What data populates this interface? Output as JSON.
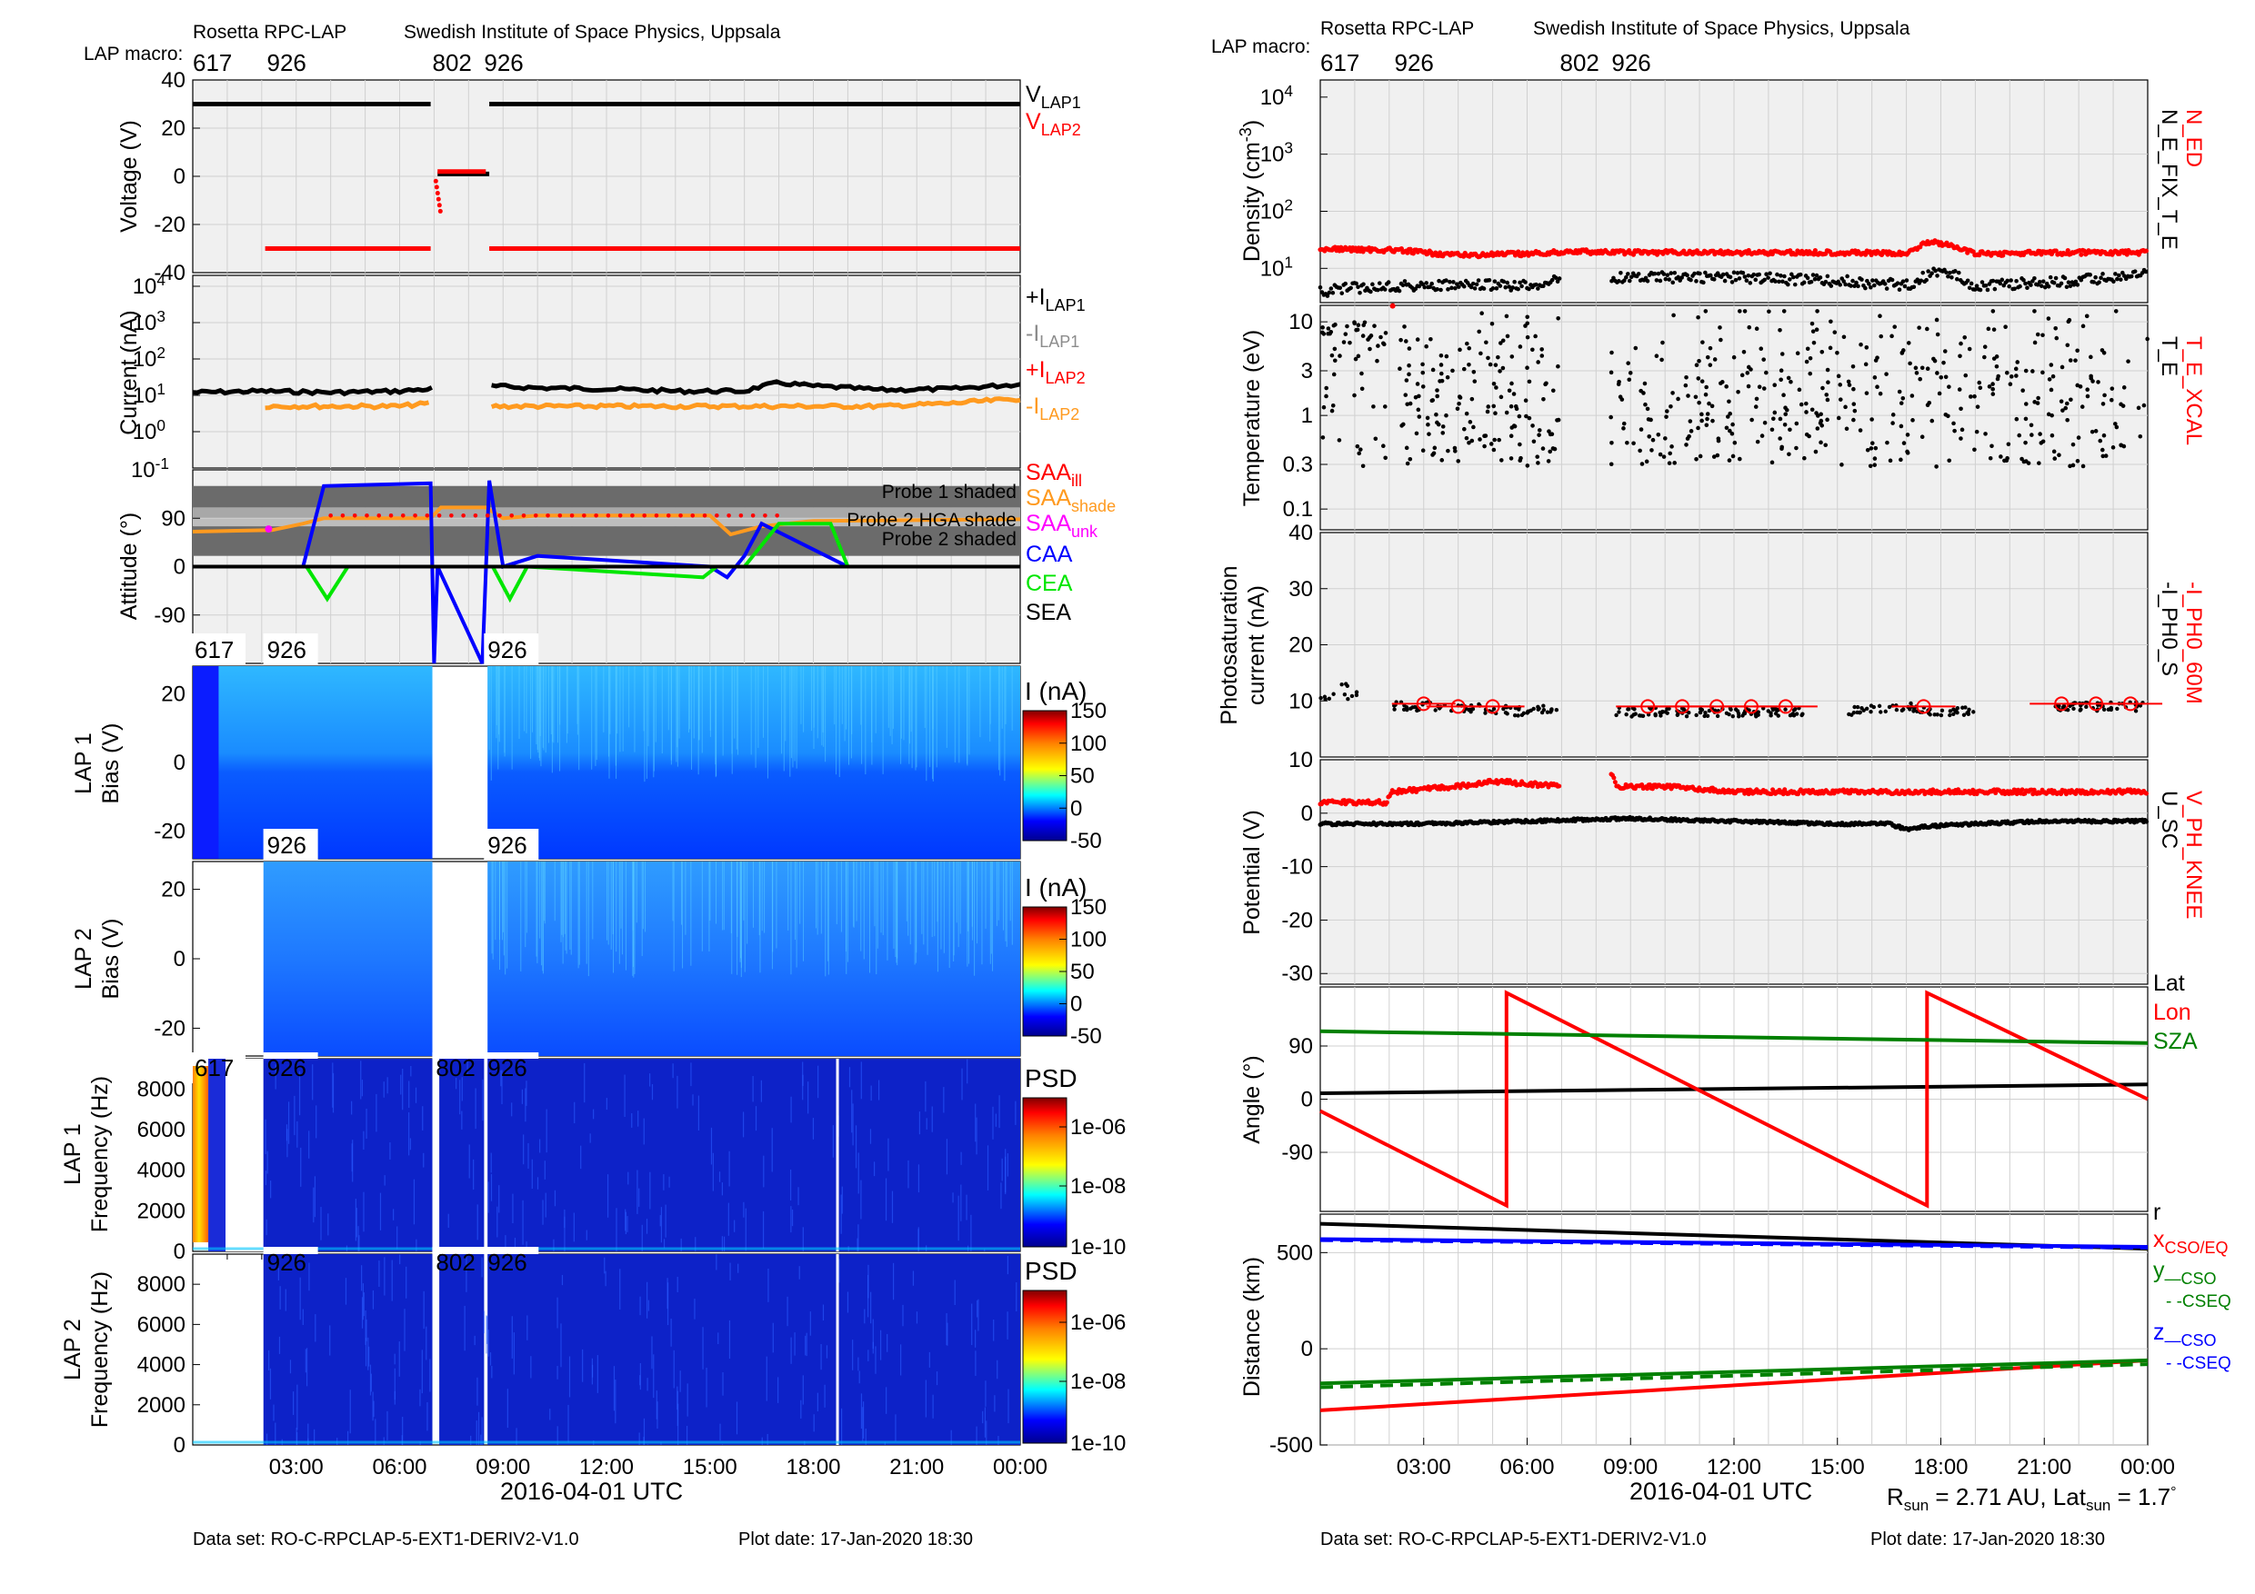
{
  "header": {
    "instrument": "Rosetta RPC-LAP",
    "institute": "Swedish Institute of Space Physics, Uppsala",
    "macro_label": "LAP macro:",
    "macros": [
      "617",
      "926",
      "802",
      "926"
    ]
  },
  "footer": {
    "dataset": "Data set: RO-C-RPCLAP-5-EXT1-DERIV2-V1.0",
    "plot_date": "Plot date: 17-Jan-2020 18:30",
    "sun_info": "R_sun = 2.71 AU, Lat_sun = 1.7°"
  },
  "xaxis": {
    "title": "2016-04-01 UTC",
    "ticks": [
      "03:00",
      "06:00",
      "09:00",
      "12:00",
      "15:00",
      "18:00",
      "21:00",
      "00:00"
    ],
    "range_hours": [
      0,
      24
    ]
  },
  "colors": {
    "black": "#000000",
    "red": "#ff0000",
    "orange": "#ff9a1f",
    "gray": "#8c8c8c",
    "magenta": "#ff00ff",
    "blue": "#0000ff",
    "green": "#00e600",
    "darkgreen": "#008000",
    "panel_bg": "#f0f0f0",
    "grid": "#d0d0d0"
  },
  "chart_data": [
    {
      "id": "voltage",
      "type": "scatter",
      "ylabel": "Voltage (V)",
      "yticks": [
        40,
        20,
        0,
        -20,
        -40
      ],
      "ylim": [
        -40,
        40
      ],
      "legend": [
        {
          "name": "V_LAP1",
          "color": "#000000"
        },
        {
          "name": "V_LAP2",
          "color": "#ff0000"
        }
      ],
      "series": [
        {
          "name": "V_LAP1",
          "segments": [
            {
              "x": [
                0,
                6.9
              ],
              "y": 30
            },
            {
              "x": [
                8.6,
                24
              ],
              "y": 30
            },
            {
              "x": [
                7.1,
                8.6
              ],
              "y": 1
            }
          ]
        },
        {
          "name": "V_LAP2",
          "segments": [
            {
              "x": [
                2.1,
                6.9
              ],
              "y": -30
            },
            {
              "x": [
                8.6,
                24
              ],
              "y": -30
            },
            {
              "x": [
                7.1,
                8.5
              ],
              "y": 2
            }
          ]
        }
      ]
    },
    {
      "id": "current",
      "type": "line",
      "ylabel": "Current (nA)",
      "yscale": "log",
      "yticks": [
        "10^4",
        "10^3",
        "10^2",
        "10^1",
        "10^0",
        "10^-1"
      ],
      "legend": [
        {
          "name": "+I_LAP1",
          "color": "#000000"
        },
        {
          "name": "-I_LAP1",
          "color": "#8c8c8c"
        },
        {
          "name": "+I_LAP2",
          "color": "#ff0000"
        },
        {
          "name": "-I_LAP2",
          "color": "#ff9a1f"
        }
      ],
      "series": [
        {
          "name": "+I_LAP1",
          "x": [
            0,
            2,
            4,
            6,
            6.9,
            8.6,
            10,
            12,
            14,
            16,
            17,
            18,
            20,
            22,
            24
          ],
          "y": [
            12,
            13,
            12,
            13,
            15,
            18,
            16,
            15,
            13,
            13,
            22,
            18,
            14,
            15,
            20
          ]
        },
        {
          "name": "-I_LAP2",
          "x": [
            2.1,
            4,
            6,
            6.9,
            8.6,
            10,
            12,
            14,
            16,
            18,
            20,
            22,
            24
          ],
          "y": [
            5,
            5,
            5,
            6,
            5,
            5,
            5,
            5,
            5,
            5,
            5,
            6,
            8
          ]
        }
      ]
    },
    {
      "id": "attitude",
      "type": "line",
      "ylabel": "Attitude (°)",
      "yticks": [
        90,
        0,
        -90
      ],
      "ylim": [
        -180,
        180
      ],
      "annotations": [
        "Probe 1 shaded",
        "Probe 2 HGA shade",
        "Probe 2 shaded"
      ],
      "legend": [
        {
          "name": "SAA_ill",
          "color": "#ff0000"
        },
        {
          "name": "SAA_shade",
          "color": "#ff9a1f"
        },
        {
          "name": "SAA_unk",
          "color": "#ff00ff"
        },
        {
          "name": "CAA",
          "color": "#0000ff"
        },
        {
          "name": "CEA",
          "color": "#00e600"
        },
        {
          "name": "SEA",
          "color": "#000000"
        }
      ],
      "series": [
        {
          "name": "SAA",
          "x": [
            0,
            2.3,
            3.2,
            3.8,
            6.9,
            7.2,
            8.5,
            9,
            10,
            15,
            15.6,
            16.5,
            18,
            24
          ],
          "y": [
            65,
            68,
            80,
            90,
            90,
            110,
            110,
            90,
            95,
            95,
            60,
            75,
            85,
            88
          ]
        },
        {
          "name": "CAA",
          "x": [
            0,
            3.2,
            3.8,
            6.9,
            7.0,
            7.1,
            8.4,
            8.6,
            9,
            10,
            15,
            15.5,
            16,
            16.5,
            19,
            24
          ],
          "y": [
            0,
            0,
            150,
            155,
            -180,
            0,
            -180,
            160,
            0,
            20,
            0,
            -20,
            20,
            80,
            0,
            0
          ]
        },
        {
          "name": "CEA",
          "x": [
            0,
            3.3,
            3.9,
            4.5,
            6.9,
            8.7,
            9.2,
            9.7,
            14.8,
            15.2,
            16,
            17,
            18.5,
            19,
            24
          ],
          "y": [
            0,
            0,
            -60,
            0,
            0,
            0,
            -60,
            0,
            -20,
            0,
            0,
            80,
            80,
            0,
            0
          ]
        },
        {
          "name": "SEA",
          "x": [
            0,
            24
          ],
          "y": [
            0,
            0
          ]
        }
      ]
    },
    {
      "id": "lap1_bias",
      "type": "heatmap",
      "ylabel": "LAP 1\nBias (V)",
      "yticks": [
        20,
        0,
        -20
      ],
      "colorbar": {
        "label": "I (nA)",
        "ticks": [
          150,
          100,
          50,
          0,
          -50
        ]
      }
    },
    {
      "id": "lap2_bias",
      "type": "heatmap",
      "ylabel": "LAP 2\nBias (V)",
      "yticks": [
        20,
        0,
        -20
      ],
      "colorbar": {
        "label": "I (nA)",
        "ticks": [
          150,
          100,
          50,
          0,
          -50
        ]
      }
    },
    {
      "id": "lap1_freq",
      "type": "heatmap",
      "ylabel": "LAP 1\nFrequency (Hz)",
      "yticks": [
        8000,
        6000,
        4000,
        2000,
        0
      ],
      "colorbar": {
        "label": "PSD",
        "ticks": [
          "1e-06",
          "1e-08",
          "1e-10"
        ]
      }
    },
    {
      "id": "lap2_freq",
      "type": "heatmap",
      "ylabel": "LAP 2\nFrequency (Hz)",
      "yticks": [
        8000,
        6000,
        4000,
        2000,
        0
      ],
      "colorbar": {
        "label": "PSD",
        "ticks": [
          "1e-06",
          "1e-08",
          "1e-10"
        ]
      }
    },
    {
      "id": "density",
      "type": "scatter",
      "ylabel": "Density (cm^-3)",
      "yscale": "log",
      "yticks": [
        "10^4",
        "10^3",
        "10^2",
        "10^1"
      ],
      "legend": [
        {
          "name": "N_ED",
          "color": "#ff0000"
        },
        {
          "name": "N_E_FIX_T_E",
          "color": "#000000"
        }
      ],
      "series": [
        {
          "name": "N_ED",
          "x": [
            0,
            2,
            4,
            6,
            6.9,
            7.3,
            8.4,
            10,
            12,
            15,
            17,
            17.7,
            19,
            22,
            24
          ],
          "y": [
            22,
            21,
            17,
            18,
            19,
            20,
            19,
            19,
            19,
            19,
            18,
            30,
            18,
            19,
            19
          ]
        },
        {
          "name": "N_E_FIX_T_E",
          "x": [
            0,
            2,
            4,
            6,
            6.9,
            8.4,
            10,
            12,
            15,
            17,
            18,
            19,
            22,
            24
          ],
          "y": [
            4,
            5,
            5,
            5,
            6,
            7,
            7,
            7,
            6,
            5,
            9,
            5,
            6,
            8
          ]
        }
      ]
    },
    {
      "id": "temperature",
      "type": "scatter",
      "ylabel": "Temperature (eV)",
      "yscale": "log",
      "yticks": [
        10,
        3,
        1,
        0.3,
        0.1
      ],
      "legend": [
        {
          "name": "T_E_XCAL",
          "color": "#ff0000"
        },
        {
          "name": "T_E",
          "color": "#000000"
        }
      ],
      "series": [
        {
          "name": "T_E",
          "note_range": [
            0.1,
            15
          ]
        }
      ]
    },
    {
      "id": "photosat",
      "type": "scatter",
      "ylabel": "Photosaturation\ncurrent (nA)",
      "yticks": [
        40,
        30,
        20,
        10
      ],
      "ylim": [
        0,
        40
      ],
      "legend": [
        {
          "name": "-I_PH0_60M",
          "color": "#ff0000"
        },
        {
          "name": "-I_PH0_S",
          "color": "#000000"
        }
      ],
      "series": [
        {
          "name": "-I_PH0_S",
          "x": [
            0,
            0.5,
            1,
            2,
            4,
            6,
            6.9,
            8.4,
            10,
            12,
            14,
            15,
            17,
            18,
            22,
            24
          ],
          "y": [
            10,
            11,
            10,
            9,
            9,
            8,
            9,
            8,
            8,
            8,
            8,
            8,
            9,
            8,
            9,
            9
          ]
        },
        {
          "name": "-I_PH0_60M",
          "x": [
            3,
            4,
            5,
            9.5,
            10.5,
            11.5,
            12.5,
            13.5,
            17.5,
            21.5,
            22.5,
            23.5
          ],
          "y": [
            9.5,
            9,
            9,
            9,
            9,
            9,
            9,
            9,
            9,
            9.5,
            9.5,
            9.5
          ]
        }
      ]
    },
    {
      "id": "potential",
      "type": "scatter",
      "ylabel": "Potential (V)",
      "yticks": [
        10,
        0,
        -10,
        -20,
        -30
      ],
      "ylim": [
        -32,
        10
      ],
      "legend": [
        {
          "name": "V_PH_KNEE",
          "color": "#ff0000"
        },
        {
          "name": "U_SC",
          "color": "#000000"
        }
      ],
      "series": [
        {
          "name": "V_PH_KNEE",
          "x": [
            0,
            1.9,
            2.1,
            4,
            5,
            6.9,
            8.4,
            8.6,
            10,
            12,
            15,
            18,
            21,
            24
          ],
          "y": [
            2,
            2,
            4,
            5,
            6,
            5,
            8,
            5,
            5,
            4,
            4,
            4,
            4,
            4
          ]
        },
        {
          "name": "U_SC",
          "x": [
            0,
            3,
            6,
            9,
            12,
            15,
            16.5,
            17,
            17.5,
            19,
            21,
            24
          ],
          "y": [
            -2,
            -2,
            -1.5,
            -1,
            -1.5,
            -2,
            -2,
            -3,
            -2.5,
            -2,
            -1.5,
            -1.5
          ]
        }
      ]
    },
    {
      "id": "angle",
      "type": "line",
      "ylabel": "Angle (°)",
      "yticks": [
        90,
        0,
        -90
      ],
      "ylim": [
        -190,
        190
      ],
      "legend": [
        {
          "name": "Lat",
          "color": "#000000"
        },
        {
          "name": "Lon",
          "color": "#ff0000"
        },
        {
          "name": "SZA",
          "color": "#008000"
        }
      ],
      "series": [
        {
          "name": "Lat",
          "x": [
            0,
            24
          ],
          "y": [
            10,
            25
          ]
        },
        {
          "name": "Lon",
          "x": [
            0,
            5.4,
            5.4,
            17.6,
            17.6,
            24
          ],
          "y": [
            -20,
            -180,
            180,
            -180,
            180,
            0
          ]
        },
        {
          "name": "SZA",
          "x": [
            0,
            24
          ],
          "y": [
            115,
            95
          ]
        }
      ]
    },
    {
      "id": "distance",
      "type": "line",
      "ylabel": "Distance (km)",
      "yticks": [
        500,
        0,
        -500
      ],
      "ylim": [
        -500,
        700
      ],
      "legend": [
        {
          "name": "r",
          "color": "#000000"
        },
        {
          "name": "x_CSO/EQ",
          "color": "#ff0000"
        },
        {
          "name": "y_—CSO",
          "color": "#008000"
        },
        {
          "name": "- -CSEQ",
          "color": "#008000"
        },
        {
          "name": "z_—CSO",
          "color": "#0000ff"
        },
        {
          "name": "- -CSEQ",
          "color": "#0000ff"
        }
      ],
      "series": [
        {
          "name": "r",
          "x": [
            0,
            24
          ],
          "y": [
            650,
            520
          ]
        },
        {
          "name": "x_CSO/EQ",
          "x": [
            0,
            24
          ],
          "y": [
            -320,
            -60
          ]
        },
        {
          "name": "y_CSO",
          "x": [
            0,
            24
          ],
          "y": [
            -180,
            -60
          ]
        },
        {
          "name": "y_CSEQ",
          "x": [
            0,
            24
          ],
          "y": [
            -200,
            -80
          ]
        },
        {
          "name": "z_CSO",
          "x": [
            0,
            24
          ],
          "y": [
            570,
            530
          ]
        },
        {
          "name": "z_CSEQ",
          "x": [
            0,
            24
          ],
          "y": [
            565,
            525
          ]
        }
      ]
    }
  ]
}
